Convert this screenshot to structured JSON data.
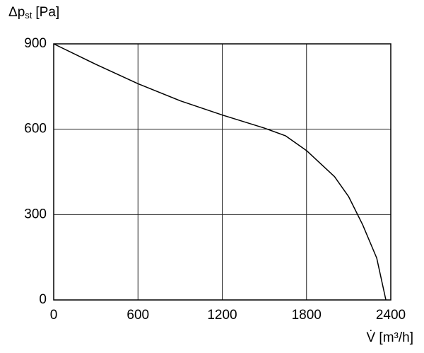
{
  "chart_data": {
    "type": "line",
    "ylabel": "Δp",
    "ylabel_subscript": "st",
    "ylabel_unit": "[Pa]",
    "xlabel": "V̇ [m³/h]",
    "x": [
      0,
      300,
      600,
      900,
      1200,
      1500,
      1650,
      1800,
      2000,
      2100,
      2200,
      2300,
      2365
    ],
    "series": [
      {
        "color": "#000000",
        "values": [
          900,
          828,
          760,
          700,
          650,
          604,
          577,
          525,
          433,
          363,
          264,
          147,
          0
        ]
      }
    ],
    "xlim": [
      0,
      2400
    ],
    "xticks": [
      0,
      600,
      1200,
      1800,
      2400
    ],
    "ylim": [
      0,
      900
    ],
    "yticks": [
      0,
      300,
      600,
      900
    ],
    "grid": true
  }
}
